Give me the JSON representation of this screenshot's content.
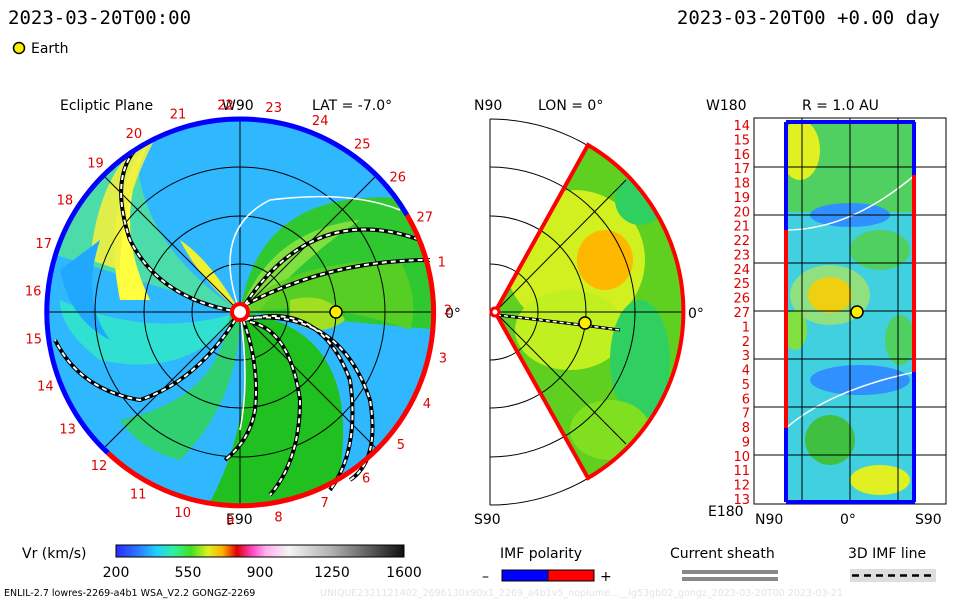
{
  "header": {
    "datetime": "2023-03-20T00:00",
    "datetime_right": "2023-03-20T00 +0.00 day",
    "legend_earth": "Earth"
  },
  "ecliptic": {
    "title": "Ecliptic Plane",
    "lat": "LAT = -7.0°",
    "w90": "W90",
    "e90": "E90",
    "zero": "0°",
    "rotation_numbers": [
      "1",
      "2",
      "3",
      "4",
      "5",
      "6",
      "7",
      "8",
      "9",
      "10",
      "11",
      "12",
      "13",
      "14",
      "15",
      "16",
      "17",
      "18",
      "19",
      "20",
      "21",
      "22",
      "23",
      "24",
      "25",
      "26",
      "27"
    ]
  },
  "meridional": {
    "n90": "N90",
    "lon": "LON = 0°",
    "s90": "S90",
    "zero": "0°"
  },
  "r_panel": {
    "w180": "W180",
    "e180": "E180",
    "title": "R = 1.0 AU",
    "bottom_labels": [
      "N90",
      "0°",
      "S90"
    ],
    "left_numbers": [
      "14",
      "15",
      "16",
      "17",
      "18",
      "19",
      "20",
      "21",
      "22",
      "23",
      "24",
      "25",
      "26",
      "27",
      "1",
      "2",
      "3",
      "4",
      "5",
      "6",
      "7",
      "8",
      "9",
      "10",
      "11",
      "12",
      "13"
    ]
  },
  "colorbar": {
    "label": "Vr (km/s)",
    "ticks": [
      "200",
      "550",
      "900",
      "1250",
      "1600"
    ]
  },
  "imf": {
    "label": "IMF polarity",
    "minus": "–",
    "plus": "+",
    "neg_color": "#0000ff",
    "pos_color": "#ff0000"
  },
  "sheath": {
    "label": "Current sheath"
  },
  "imfline": {
    "label": "3D IMF line"
  },
  "footer": {
    "left": "ENLIL-2.7 lowres-2269-a4b1 WSA_V2.2 GONGZ-2269",
    "right_faint": "UNIQUE2321121402_2696130x90x1_2269_a4b1v5_noplume...__lg53gb02_gongz_2023-03-20T00   2023-03-21"
  },
  "colors": {
    "negative_sector": "#0000ff",
    "positive_sector": "#ff0000",
    "earth": "#ffee00"
  }
}
